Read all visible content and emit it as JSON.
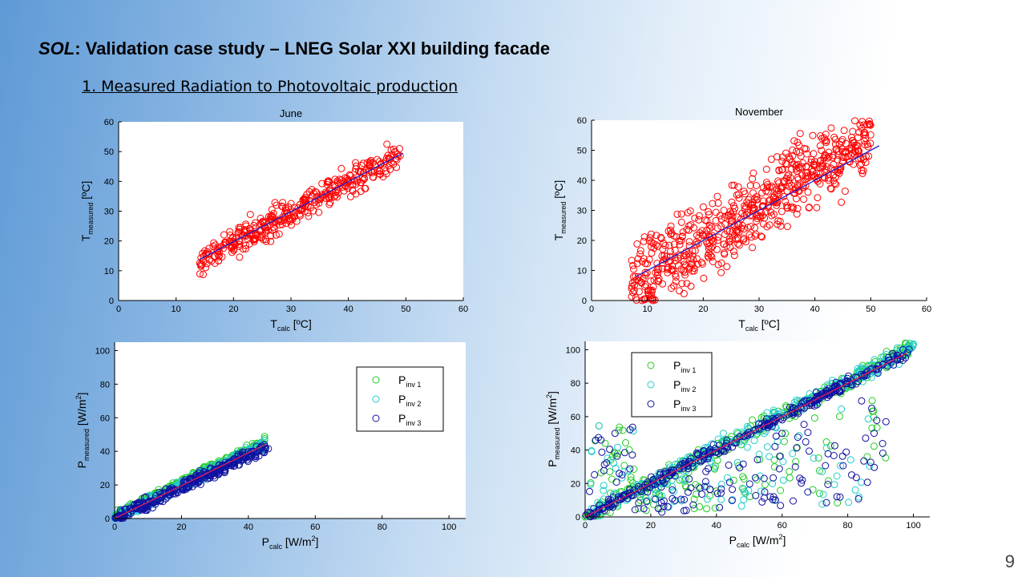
{
  "title_prefix": "SOL",
  "title_rest": ": Validation case study – LNEG Solar XXI building facade",
  "subtitle": "1. Measured Radiation to Photovoltaic production",
  "page_number": "9",
  "colors": {
    "scatter_temp": "#ff0000",
    "fit_line": "#1f1fcc",
    "inv1": "#22cc22",
    "inv2": "#22cccc",
    "inv3": "#1010a0",
    "fit_power": "#e0205a"
  },
  "chart_data": [
    {
      "id": "june-temp",
      "type": "scatter",
      "title": "June",
      "xlabel": "T",
      "xlabel_sub": "calc",
      "xlabel_unit": " [ºC]",
      "ylabel": "T",
      "ylabel_sub": "measured",
      "ylabel_unit": " [ºC]",
      "xlim": [
        0,
        60
      ],
      "ylim": [
        0,
        60
      ],
      "xticks": [
        0,
        10,
        20,
        30,
        40,
        50,
        60
      ],
      "yticks": [
        0,
        10,
        20,
        30,
        40,
        50,
        60
      ],
      "series": [
        {
          "color": "#ff0000",
          "x_range": [
            14,
            49
          ],
          "slope": 1.03,
          "intercept": -1.5,
          "spread": 2.5,
          "count": 380
        }
      ],
      "fit": {
        "x": [
          14,
          49.5
        ],
        "y": [
          13.7,
          49.5
        ]
      }
    },
    {
      "id": "november-temp",
      "type": "scatter",
      "title": "November",
      "xlabel": "T",
      "xlabel_sub": "calc",
      "xlabel_unit": " [ºC]",
      "ylabel": "T",
      "ylabel_sub": "measured",
      "ylabel_unit": " [ºC]",
      "xlim": [
        0,
        60
      ],
      "ylim": [
        0,
        60
      ],
      "xticks": [
        0,
        10,
        20,
        30,
        40,
        50,
        60
      ],
      "yticks": [
        0,
        10,
        20,
        30,
        40,
        50,
        60
      ],
      "series": [
        {
          "color": "#ff0000",
          "x_range": [
            7,
            50
          ],
          "slope": 1.15,
          "intercept": -3,
          "spread": 6,
          "count": 650
        }
      ],
      "fit": {
        "x": [
          8,
          51.5
        ],
        "y": [
          8,
          51.5
        ]
      }
    },
    {
      "id": "june-power",
      "type": "scatter",
      "xlabel": "P",
      "xlabel_sub": "calc",
      "xlabel_unit": " [W/m",
      "xlabel_sup": "2",
      "xlabel_end": "]",
      "ylabel": "P",
      "ylabel_sub": "measured",
      "ylabel_unit": " [W/m",
      "ylabel_sup": "2",
      "ylabel_end": "]",
      "xlim": [
        0,
        105
      ],
      "ylim": [
        0,
        105
      ],
      "xticks": [
        0,
        20,
        40,
        60,
        80,
        100
      ],
      "yticks": [
        0,
        20,
        40,
        60,
        80,
        100
      ],
      "legend_position": "top-right",
      "series": [
        {
          "name": "P",
          "sub": "inv 1",
          "color": "#22cc22",
          "x_range": [
            0,
            45
          ],
          "slope": 0.99,
          "intercept": 1.5,
          "spread": 1.3,
          "count": 240
        },
        {
          "name": "P",
          "sub": "inv 2",
          "color": "#22cccc",
          "x_range": [
            0,
            45
          ],
          "slope": 0.97,
          "intercept": 0.5,
          "spread": 1.5,
          "count": 240
        },
        {
          "name": "P",
          "sub": "inv 3",
          "color": "#1010a0",
          "x_range": [
            0,
            46
          ],
          "slope": 0.95,
          "intercept": -0.5,
          "spread": 1.8,
          "count": 320
        }
      ],
      "fit": {
        "x": [
          0,
          45
        ],
        "y": [
          0,
          44
        ]
      }
    },
    {
      "id": "november-power",
      "type": "scatter",
      "xlabel": "P",
      "xlabel_sub": "calc",
      "xlabel_unit": " [W/m",
      "xlabel_sup": "2",
      "xlabel_end": "]",
      "ylabel": "P",
      "ylabel_sub": "measured",
      "ylabel_unit": " [W/m",
      "ylabel_sup": "2",
      "ylabel_end": "]",
      "xlim": [
        0,
        105
      ],
      "ylim": [
        0,
        105
      ],
      "xticks": [
        0,
        20,
        40,
        60,
        80,
        100
      ],
      "yticks": [
        0,
        20,
        40,
        60,
        80,
        100
      ],
      "legend_position": "top-left",
      "series": [
        {
          "name": "P",
          "sub": "inv 1",
          "color": "#22cc22",
          "x_range": [
            0,
            100
          ],
          "slope": 1.02,
          "intercept": 0,
          "spread": 2.5,
          "count": 260,
          "outliers": 90
        },
        {
          "name": "P",
          "sub": "inv 2",
          "color": "#22cccc",
          "x_range": [
            0,
            100
          ],
          "slope": 1.01,
          "intercept": 0.5,
          "spread": 2.5,
          "count": 260,
          "outliers": 70
        },
        {
          "name": "P",
          "sub": "inv 3",
          "color": "#1010a0",
          "x_range": [
            0,
            100
          ],
          "slope": 1.0,
          "intercept": 0,
          "spread": 1.8,
          "count": 320,
          "outliers": 120
        }
      ],
      "fit": {
        "x": [
          0,
          98
        ],
        "y": [
          0,
          98
        ]
      }
    }
  ]
}
